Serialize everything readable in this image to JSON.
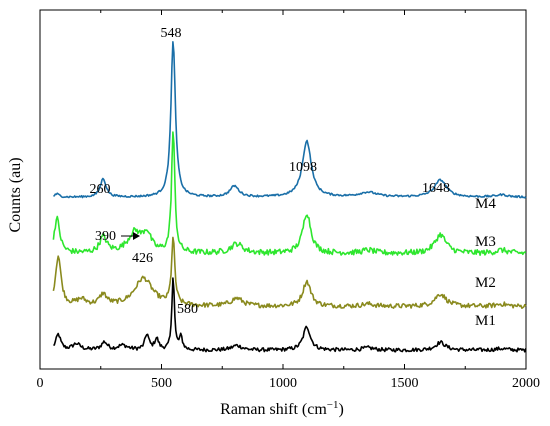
{
  "chart_data": {
    "type": "line",
    "xlabel": "Raman shift (cm",
    "xlabel_sup": "−1",
    "xlabel_close": ")",
    "ylabel": "Counts (au)",
    "xlim": [
      0,
      2000
    ],
    "xticks": [
      0,
      500,
      1000,
      1500,
      2000
    ],
    "y_ticks_labeled": false,
    "grid": false,
    "series": [
      {
        "name": "M1",
        "color": "#000000",
        "baseline": 0.0,
        "noise": 0.012,
        "peaks": [
          {
            "x": 75,
            "h": 0.1,
            "w": 12
          },
          {
            "x": 150,
            "h": 0.04,
            "w": 20
          },
          {
            "x": 265,
            "h": 0.05,
            "w": 15
          },
          {
            "x": 340,
            "h": 0.03,
            "w": 25
          },
          {
            "x": 440,
            "h": 0.1,
            "w": 10
          },
          {
            "x": 480,
            "h": 0.07,
            "w": 10
          },
          {
            "x": 548,
            "h": 0.48,
            "w": 6
          },
          {
            "x": 580,
            "h": 0.08,
            "w": 8
          },
          {
            "x": 810,
            "h": 0.03,
            "w": 25
          },
          {
            "x": 1098,
            "h": 0.15,
            "w": 18
          },
          {
            "x": 1350,
            "h": 0.015,
            "w": 30
          },
          {
            "x": 1648,
            "h": 0.05,
            "w": 25
          },
          {
            "x": 1900,
            "h": 0.01,
            "w": 30
          }
        ]
      },
      {
        "name": "M2",
        "color": "#8a8a1e",
        "baseline": 0.28,
        "noise": 0.015,
        "peaks": [
          {
            "x": 75,
            "h": 0.32,
            "w": 14
          },
          {
            "x": 170,
            "h": 0.04,
            "w": 25
          },
          {
            "x": 260,
            "h": 0.07,
            "w": 18
          },
          {
            "x": 426,
            "h": 0.18,
            "w": 45
          },
          {
            "x": 548,
            "h": 0.42,
            "w": 8
          },
          {
            "x": 810,
            "h": 0.05,
            "w": 30
          },
          {
            "x": 1098,
            "h": 0.16,
            "w": 20
          },
          {
            "x": 1350,
            "h": 0.015,
            "w": 30
          },
          {
            "x": 1648,
            "h": 0.08,
            "w": 28
          },
          {
            "x": 1900,
            "h": 0.015,
            "w": 30
          }
        ]
      },
      {
        "name": "M3",
        "color": "#2ee62e",
        "baseline": 0.62,
        "noise": 0.018,
        "peaks": [
          {
            "x": 70,
            "h": 0.22,
            "w": 14
          },
          {
            "x": 260,
            "h": 0.1,
            "w": 18
          },
          {
            "x": 390,
            "h": 0.13,
            "w": 35
          },
          {
            "x": 440,
            "h": 0.11,
            "w": 20
          },
          {
            "x": 548,
            "h": 0.78,
            "w": 8
          },
          {
            "x": 810,
            "h": 0.06,
            "w": 30
          },
          {
            "x": 1098,
            "h": 0.26,
            "w": 20
          },
          {
            "x": 1350,
            "h": 0.02,
            "w": 30
          },
          {
            "x": 1648,
            "h": 0.12,
            "w": 28
          },
          {
            "x": 1900,
            "h": 0.02,
            "w": 30
          }
        ]
      },
      {
        "name": "M4",
        "color": "#1a6fa8",
        "baseline": 0.98,
        "noise": 0.006,
        "peaks": [
          {
            "x": 70,
            "h": 0.02,
            "w": 12
          },
          {
            "x": 260,
            "h": 0.12,
            "w": 14
          },
          {
            "x": 548,
            "h": 1.0,
            "w": 11
          },
          {
            "x": 800,
            "h": 0.07,
            "w": 22
          },
          {
            "x": 1098,
            "h": 0.36,
            "w": 22
          },
          {
            "x": 1350,
            "h": 0.03,
            "w": 45
          },
          {
            "x": 1648,
            "h": 0.11,
            "w": 30
          },
          {
            "x": 1900,
            "h": 0.015,
            "w": 30
          }
        ]
      }
    ],
    "annotations": [
      {
        "text": "548"
      },
      {
        "text": "260"
      },
      {
        "text": "1098"
      },
      {
        "text": "1648"
      },
      {
        "text": "390"
      },
      {
        "text": "426"
      },
      {
        "text": "580"
      }
    ]
  }
}
